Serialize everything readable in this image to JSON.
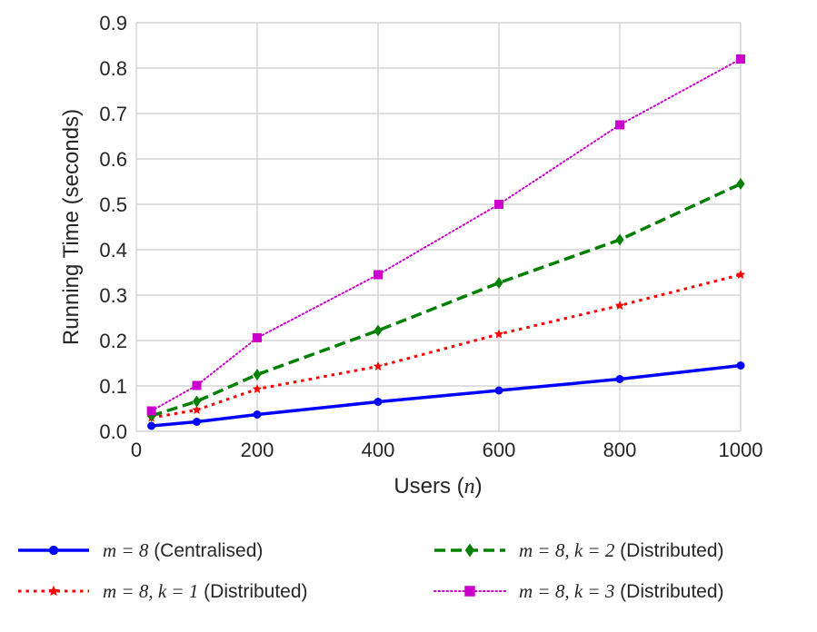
{
  "chart_data": {
    "type": "line",
    "title": "",
    "xlabel": "Users",
    "xlabel_var": "n",
    "ylabel": "Running Time (seconds)",
    "xlim": [
      0,
      1000
    ],
    "ylim": [
      0.0,
      0.9
    ],
    "grid": true,
    "x_ticks": [
      0,
      200,
      400,
      600,
      800,
      1000
    ],
    "y_ticks": [
      0.0,
      0.1,
      0.2,
      0.3,
      0.4,
      0.5,
      0.6,
      0.7,
      0.8,
      0.9
    ],
    "x_tick_labels": [
      "0",
      "200",
      "400",
      "600",
      "800",
      "1000"
    ],
    "y_tick_labels": [
      "0.0",
      "0.1",
      "0.2",
      "0.3",
      "0.4",
      "0.5",
      "0.6",
      "0.7",
      "0.8",
      "0.9"
    ],
    "x": [
      25,
      100,
      200,
      400,
      600,
      800,
      1000
    ],
    "legend_position": "bottom",
    "series": [
      {
        "name": "m = 8 (Centralised)",
        "math": "m = 8",
        "suffix": "(Centralised)",
        "color": "#0000ff",
        "dash": "solid",
        "marker": "circle",
        "values": [
          0.012,
          0.021,
          0.037,
          0.065,
          0.09,
          0.115,
          0.145
        ]
      },
      {
        "name": "m = 8, k = 1 (Distributed)",
        "math": "m = 8, k = 1",
        "suffix": "(Distributed)",
        "color": "#ff0000",
        "dash": "dashdot",
        "marker": "star",
        "values": [
          0.03,
          0.047,
          0.093,
          0.143,
          0.214,
          0.277,
          0.345
        ]
      },
      {
        "name": "m = 8, k = 2 (Distributed)",
        "math": "m = 8, k = 2",
        "suffix": "(Distributed)",
        "color": "#008000",
        "dash": "dashed",
        "marker": "diamond",
        "values": [
          0.034,
          0.066,
          0.125,
          0.222,
          0.327,
          0.422,
          0.545
        ]
      },
      {
        "name": "m = 8, k = 3 (Distributed)",
        "math": "m = 8, k = 3",
        "suffix": "(Distributed)",
        "color": "#cc00cc",
        "dash": "dotted",
        "marker": "square",
        "values": [
          0.045,
          0.101,
          0.206,
          0.345,
          0.5,
          0.675,
          0.82
        ]
      }
    ]
  }
}
